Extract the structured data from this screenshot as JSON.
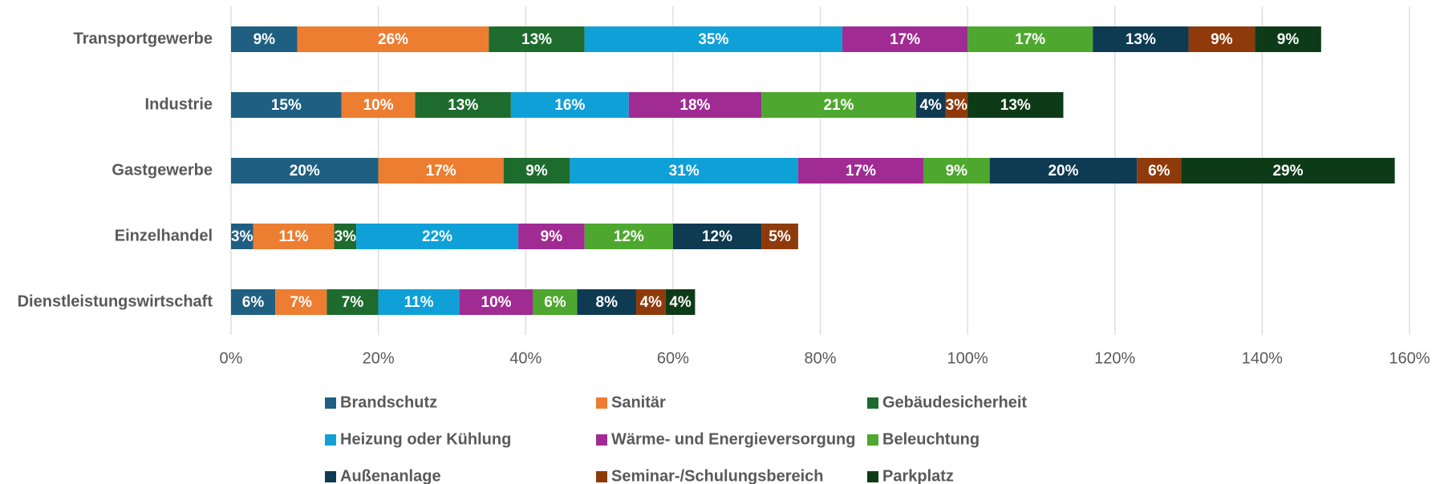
{
  "chart_data": {
    "type": "stacked-barh",
    "categories": [
      "Transportgewerbe",
      "Industrie",
      "Gastgewerbe",
      "Einzelhandel",
      "Dienstleistungswirtschaft"
    ],
    "series": [
      {
        "name": "Brandschutz",
        "color": "#1f5f82",
        "values": [
          9,
          15,
          20,
          3,
          6
        ],
        "value_labels": [
          "9%",
          "15%",
          "20%",
          "3%",
          "6%"
        ]
      },
      {
        "name": "Sanitär",
        "color": "#ed7d31",
        "values": [
          26,
          10,
          17,
          11,
          7
        ],
        "value_labels": [
          "26%",
          "10%",
          "17%",
          "11%",
          "7%"
        ]
      },
      {
        "name": "Gebäudesicherheit",
        "color": "#1e6b2e",
        "values": [
          13,
          13,
          9,
          3,
          7
        ],
        "value_labels": [
          "13%",
          "13%",
          "9%",
          "3%",
          "7%"
        ]
      },
      {
        "name": "Heizung oder Kühlung",
        "color": "#0fa0d8",
        "values": [
          35,
          16,
          31,
          22,
          11
        ],
        "value_labels": [
          "35%",
          "16%",
          "31%",
          "22%",
          "11%"
        ]
      },
      {
        "name": "Wärme- und Energieversorgung",
        "color": "#a02b93",
        "values": [
          17,
          18,
          17,
          9,
          10
        ],
        "value_labels": [
          "17%",
          "18%",
          "17%",
          "9%",
          "10%"
        ]
      },
      {
        "name": "Beleuchtung",
        "color": "#4ea72e",
        "values": [
          17,
          21,
          9,
          12,
          6
        ],
        "value_labels": [
          "17%",
          "21%",
          "9%",
          "12%",
          "6%"
        ]
      },
      {
        "name": "Außenanlage",
        "color": "#0e3a52",
        "values": [
          13,
          4,
          20,
          12,
          8
        ],
        "value_labels": [
          "13%",
          "4%",
          "20%",
          "12%",
          "8%"
        ]
      },
      {
        "name": "Seminar-/Schulungsbereich",
        "color": "#8f3a0b",
        "values": [
          9,
          3,
          6,
          5,
          4
        ],
        "value_labels": [
          "9%",
          "3%",
          "6%",
          "5%",
          "4%"
        ]
      },
      {
        "name": "Parkplatz",
        "color": "#0d3b17",
        "values": [
          9,
          13,
          29,
          null,
          4
        ],
        "value_labels": [
          "9%",
          "13%",
          "29%",
          null,
          "4%"
        ]
      }
    ],
    "xlim": [
      0,
      160
    ],
    "xticks": [
      {
        "value": 0,
        "label": "0%"
      },
      {
        "value": 20,
        "label": "20%"
      },
      {
        "value": 40,
        "label": "40%"
      },
      {
        "value": 60,
        "label": "60%"
      },
      {
        "value": 80,
        "label": "80%"
      },
      {
        "value": 100,
        "label": "100%"
      },
      {
        "value": 120,
        "label": "120%"
      },
      {
        "value": 140,
        "label": "140%"
      },
      {
        "value": 160,
        "label": "160%"
      }
    ],
    "grid": true,
    "legend": "bottom"
  }
}
